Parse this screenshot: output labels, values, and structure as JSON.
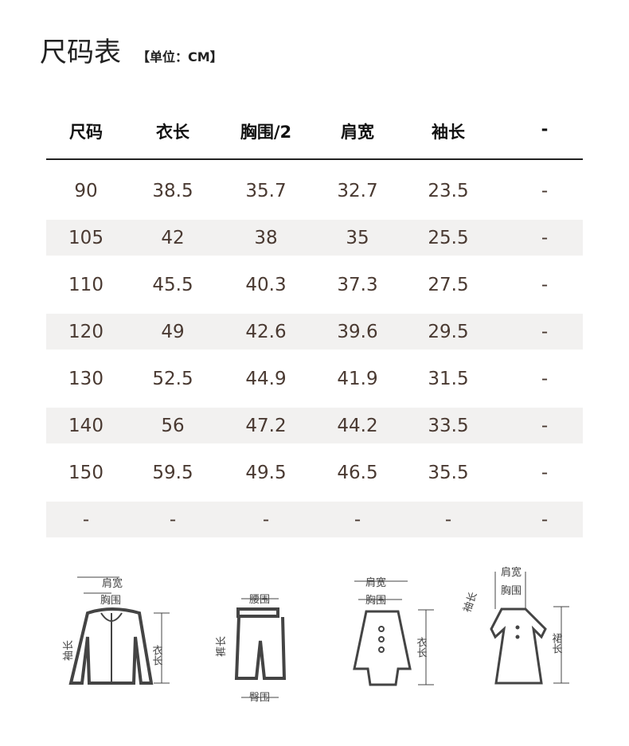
{
  "title": "尺码表",
  "unit": "【单位：CM】",
  "headers": [
    "尺码",
    "衣长",
    "胸围/2",
    "肩宽",
    "袖长",
    "-"
  ],
  "rows": [
    [
      "90",
      "38.5",
      "35.7",
      "32.7",
      "23.5",
      "-"
    ],
    [
      "105",
      "42",
      "38",
      "35",
      "25.5",
      "-"
    ],
    [
      "110",
      "45.5",
      "40.3",
      "37.3",
      "27.5",
      "-"
    ],
    [
      "120",
      "49",
      "42.6",
      "39.6",
      "29.5",
      "-"
    ],
    [
      "130",
      "52.5",
      "44.9",
      "41.9",
      "31.5",
      "-"
    ],
    [
      "140",
      "56",
      "47.2",
      "44.2",
      "33.5",
      "-"
    ],
    [
      "150",
      "59.5",
      "49.5",
      "46.5",
      "35.5",
      "-"
    ],
    [
      "-",
      "-",
      "-",
      "-",
      "-",
      "-"
    ]
  ],
  "diagrams": {
    "jacket": {
      "shoulder": "肩宽",
      "chest": "胸围",
      "sleeve": "袖长",
      "length": "衣长"
    },
    "pants": {
      "waist": "腰围",
      "length": "裤长",
      "hip": "臀围"
    },
    "coat": {
      "shoulder": "肩宽",
      "chest": "胸围",
      "length": "衣长"
    },
    "dress": {
      "shoulder": "肩宽",
      "chest": "胸围",
      "sleeve": "袖长",
      "length": "裙长"
    }
  }
}
